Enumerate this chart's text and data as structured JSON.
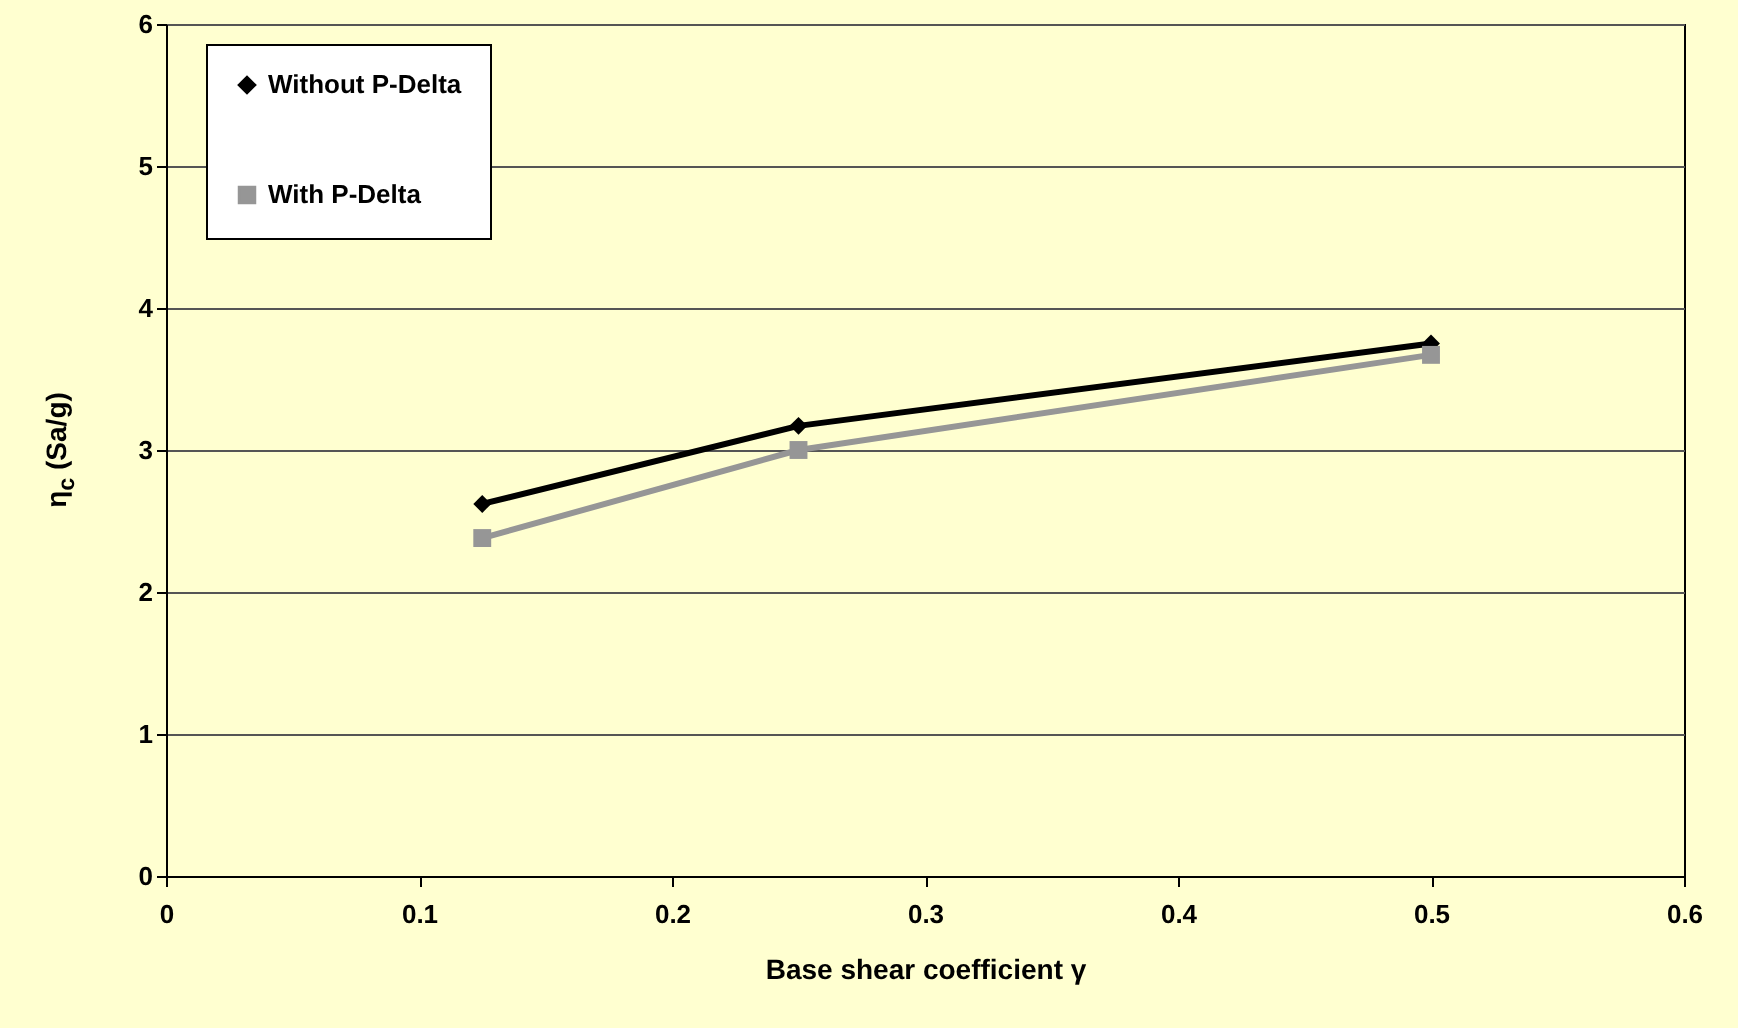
{
  "chart_data": {
    "type": "line",
    "xlabel": "Base shear coefficient γ",
    "ylabel": "η$_{c}$ (Sa/g)",
    "x": [
      0.125,
      0.25,
      0.5
    ],
    "series": [
      {
        "name": "Without P-Delta",
        "color": "#000000",
        "marker": "diamond",
        "values": [
          2.62,
          3.17,
          3.75
        ]
      },
      {
        "name": "With P-Delta",
        "color": "#969696",
        "marker": "square",
        "values": [
          2.38,
          3.0,
          3.67
        ]
      }
    ],
    "xlim": [
      0,
      0.6
    ],
    "xticks": [
      0,
      0.1,
      0.2,
      0.3,
      0.4,
      0.5,
      0.6
    ],
    "ylim": [
      0,
      6
    ],
    "yticks": [
      0,
      1,
      2,
      3,
      4,
      5,
      6
    ],
    "grid": "y",
    "legend": "top left"
  }
}
